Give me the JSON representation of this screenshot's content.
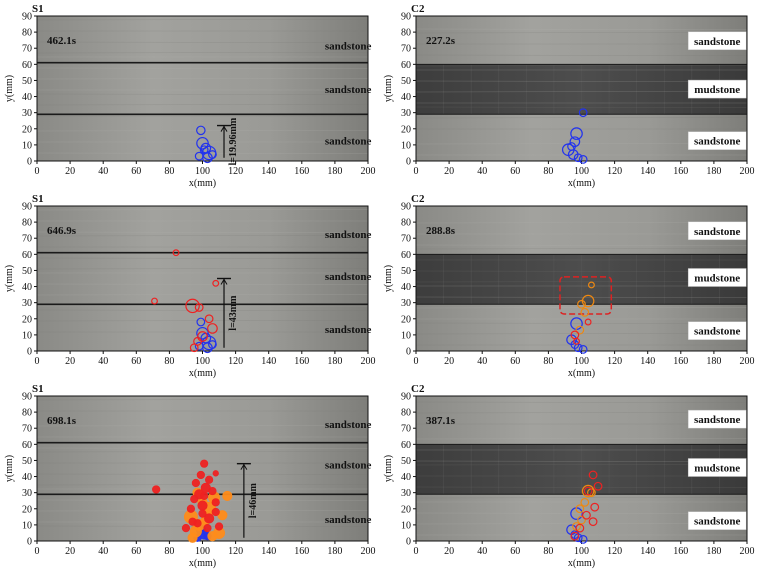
{
  "chart_data": [
    {
      "type": "scatter",
      "panel": "S1",
      "time": "462.1s",
      "xlabel": "x(mm)",
      "ylabel": "y(mm)",
      "xlim": [
        0,
        200
      ],
      "ylim": [
        0,
        90
      ],
      "xticks": [
        0,
        20,
        40,
        60,
        80,
        100,
        120,
        140,
        160,
        180,
        200
      ],
      "yticks": [
        0,
        10,
        20,
        30,
        40,
        50,
        60,
        70,
        80,
        90
      ],
      "interfaces": [
        61,
        29
      ],
      "layers": [
        {
          "label": "sandstone",
          "x": 188,
          "y": 71,
          "boxed": false
        },
        {
          "label": "sandstone",
          "x": 188,
          "y": 44,
          "boxed": false
        },
        {
          "label": "sandstone",
          "x": 188,
          "y": 12,
          "boxed": false
        }
      ],
      "measure": {
        "label": "l=19.96mm",
        "x": 113,
        "y_from": 2,
        "y_to": 22
      },
      "series": [
        {
          "color": "#2233ee",
          "filled": false,
          "points": [
            [
              99,
              19,
              2.2
            ],
            [
              100,
              11,
              3
            ],
            [
              102,
              8,
              2.5
            ],
            [
              104,
              5,
              3.5
            ],
            [
              98,
              3,
              2
            ],
            [
              103,
              2,
              2.5
            ],
            [
              106,
              4,
              2
            ],
            [
              101,
              7,
              2
            ]
          ]
        }
      ]
    },
    {
      "type": "scatter",
      "panel": "C2",
      "time": "227.2s",
      "xlabel": "x(mm)",
      "ylabel": "y(mm)",
      "xlim": [
        0,
        200
      ],
      "ylim": [
        0,
        90
      ],
      "xticks": [
        0,
        20,
        40,
        60,
        80,
        100,
        120,
        140,
        160,
        180,
        200
      ],
      "yticks": [
        0,
        10,
        20,
        30,
        40,
        50,
        60,
        70,
        80,
        90
      ],
      "interfaces": [
        60,
        29
      ],
      "layers": [
        {
          "label": "sandstone",
          "x": 182,
          "y": 74,
          "boxed": true
        },
        {
          "label": "mudstone",
          "x": 182,
          "y": 44,
          "boxed": true
        },
        {
          "label": "sandstone",
          "x": 182,
          "y": 12,
          "boxed": true
        }
      ],
      "series": [
        {
          "color": "#2233ee",
          "filled": false,
          "points": [
            [
              101,
              30,
              2
            ],
            [
              97,
              17,
              3
            ],
            [
              96,
              12,
              2.5
            ],
            [
              92,
              7,
              3
            ],
            [
              95,
              4,
              2.5
            ],
            [
              98,
              2,
              2
            ],
            [
              101,
              1,
              2
            ],
            [
              94,
              9,
              2
            ]
          ]
        }
      ]
    },
    {
      "type": "scatter",
      "panel": "S1",
      "time": "646.9s",
      "xlabel": "x(mm)",
      "ylabel": "y(mm)",
      "xlim": [
        0,
        200
      ],
      "ylim": [
        0,
        90
      ],
      "xticks": [
        0,
        20,
        40,
        60,
        80,
        100,
        120,
        140,
        160,
        180,
        200
      ],
      "yticks": [
        0,
        10,
        20,
        30,
        40,
        50,
        60,
        70,
        80,
        90
      ],
      "interfaces": [
        61,
        29
      ],
      "layers": [
        {
          "label": "sandstone",
          "x": 188,
          "y": 72,
          "boxed": false
        },
        {
          "label": "sandstone",
          "x": 188,
          "y": 46,
          "boxed": false
        },
        {
          "label": "sandstone",
          "x": 188,
          "y": 13,
          "boxed": false
        }
      ],
      "measure": {
        "label": "l=43mm",
        "x": 113,
        "y_from": 2,
        "y_to": 45
      },
      "series": [
        {
          "color": "#2233ee",
          "filled": false,
          "points": [
            [
              99,
              18,
              2
            ],
            [
              100,
              11,
              3
            ],
            [
              102,
              8,
              2.5
            ],
            [
              104,
              5,
              3.5
            ],
            [
              98,
              3,
              2
            ],
            [
              103,
              2,
              2.5
            ],
            [
              106,
              4,
              2
            ]
          ]
        },
        {
          "color": "#ee2222",
          "filled": false,
          "points": [
            [
              84,
              61,
              1.5
            ],
            [
              108,
              42,
              1.5
            ],
            [
              71,
              31,
              1.5
            ],
            [
              94,
              28,
              3.5
            ],
            [
              98,
              27,
              2
            ],
            [
              104,
              20,
              2
            ],
            [
              106,
              14,
              2.5
            ],
            [
              100,
              9,
              2.5
            ],
            [
              97,
              6,
              2
            ],
            [
              95,
              2,
              2
            ]
          ]
        }
      ]
    },
    {
      "type": "scatter",
      "panel": "C2",
      "time": "288.8s",
      "xlabel": "x(mm)",
      "ylabel": "y(mm)",
      "xlim": [
        0,
        200
      ],
      "ylim": [
        0,
        90
      ],
      "xticks": [
        0,
        20,
        40,
        60,
        80,
        100,
        120,
        140,
        160,
        180,
        200
      ],
      "yticks": [
        0,
        10,
        20,
        30,
        40,
        50,
        60,
        70,
        80,
        90
      ],
      "interfaces": [
        60,
        29
      ],
      "layers": [
        {
          "label": "sandstone",
          "x": 182,
          "y": 74,
          "boxed": true
        },
        {
          "label": "mudstone",
          "x": 182,
          "y": 45,
          "boxed": true
        },
        {
          "label": "sandstone",
          "x": 182,
          "y": 12,
          "boxed": true
        }
      ],
      "highlight": {
        "x1": 87,
        "y1": 23,
        "x2": 118,
        "y2": 46,
        "color": "#dd2222"
      },
      "series": [
        {
          "color": "#2233ee",
          "filled": false,
          "points": [
            [
              97,
              17,
              3
            ],
            [
              94,
              7,
              2.5
            ],
            [
              96,
              4,
              2
            ],
            [
              98,
              2,
              2
            ],
            [
              101,
              1,
              2
            ]
          ]
        },
        {
          "color": "#ee8811",
          "filled": false,
          "points": [
            [
              104,
              31,
              3
            ],
            [
              106,
              41,
              1.5
            ],
            [
              100,
              29,
              2
            ],
            [
              102,
              24,
              2
            ],
            [
              99,
              13,
              2
            ]
          ]
        },
        {
          "color": "#ee2222",
          "filled": false,
          "points": [
            [
              104,
              18,
              1.5
            ],
            [
              96,
              10,
              2
            ],
            [
              97,
              6,
              1.5
            ]
          ]
        }
      ]
    },
    {
      "type": "scatter",
      "panel": "S1",
      "time": "698.1s",
      "xlabel": "x(mm)",
      "ylabel": "y(mm)",
      "xlim": [
        0,
        200
      ],
      "ylim": [
        0,
        90
      ],
      "xticks": [
        0,
        20,
        40,
        60,
        80,
        100,
        120,
        140,
        160,
        180,
        200
      ],
      "yticks": [
        0,
        10,
        20,
        30,
        40,
        50,
        60,
        70,
        80,
        90
      ],
      "interfaces": [
        61,
        29
      ],
      "layers": [
        {
          "label": "sandstone",
          "x": 188,
          "y": 72,
          "boxed": false
        },
        {
          "label": "sandstone",
          "x": 188,
          "y": 47,
          "boxed": false
        },
        {
          "label": "sandstone",
          "x": 188,
          "y": 13,
          "boxed": false
        }
      ],
      "measure": {
        "label": "l=46mm",
        "x": 125,
        "y_from": 2,
        "y_to": 48
      },
      "series": [
        {
          "color": "#2233ee",
          "filled": true,
          "points": [
            [
              99,
              7,
              2.5
            ],
            [
              101,
              4,
              2.5
            ],
            [
              97,
              2,
              2
            ],
            [
              103,
              3,
              2
            ]
          ]
        },
        {
          "color": "#ff8c1a",
          "filled": true,
          "points": [
            [
              93,
              15,
              3.5
            ],
            [
              98,
              10,
              3
            ],
            [
              104,
              20,
              3.5
            ],
            [
              107,
              27,
              3
            ],
            [
              100,
              24,
              2.5
            ],
            [
              96,
              6,
              3
            ],
            [
              110,
              5,
              3
            ],
            [
              102,
              13,
              2.5
            ],
            [
              115,
              28,
              2.5
            ],
            [
              94,
              2,
              2.5
            ],
            [
              106,
              3,
              2.5
            ],
            [
              97,
              30,
              2.5
            ],
            [
              112,
              16,
              2.5
            ]
          ]
        },
        {
          "color": "#ee2222",
          "filled": true,
          "points": [
            [
              72,
              32,
              2
            ],
            [
              101,
              48,
              2
            ],
            [
              108,
              42,
              1.5
            ],
            [
              99,
              41,
              2
            ],
            [
              104,
              38,
              2
            ],
            [
              96,
              36,
              2
            ],
            [
              102,
              33,
              2.5
            ],
            [
              106,
              31,
              2
            ],
            [
              98,
              29,
              2.5
            ],
            [
              95,
              26,
              2
            ],
            [
              100,
              22,
              2.5
            ],
            [
              108,
              18,
              2
            ],
            [
              93,
              20,
              2
            ],
            [
              104,
              14,
              2.5
            ],
            [
              97,
              11,
              2
            ],
            [
              110,
              9,
              2
            ],
            [
              100,
              17,
              2
            ],
            [
              94,
              12,
              2
            ],
            [
              103,
              8,
              2
            ],
            [
              90,
              8,
              2
            ],
            [
              108,
              24,
              2
            ],
            [
              101,
              28,
              2
            ]
          ]
        }
      ]
    },
    {
      "type": "scatter",
      "panel": "C2",
      "time": "387.1s",
      "xlabel": "x(mm)",
      "ylabel": "y(mm)",
      "xlim": [
        0,
        200
      ],
      "ylim": [
        0,
        90
      ],
      "xticks": [
        0,
        20,
        40,
        60,
        80,
        100,
        120,
        140,
        160,
        180,
        200
      ],
      "yticks": [
        0,
        10,
        20,
        30,
        40,
        50,
        60,
        70,
        80,
        90
      ],
      "interfaces": [
        60,
        29
      ],
      "layers": [
        {
          "label": "sandstone",
          "x": 182,
          "y": 75,
          "boxed": true
        },
        {
          "label": "mudstone",
          "x": 182,
          "y": 45,
          "boxed": true
        },
        {
          "label": "sandstone",
          "x": 182,
          "y": 12,
          "boxed": true
        }
      ],
      "series": [
        {
          "color": "#2233ee",
          "filled": false,
          "points": [
            [
              97,
              17,
              3
            ],
            [
              94,
              7,
              2.5
            ],
            [
              96,
              4,
              2
            ],
            [
              98,
              2,
              2
            ],
            [
              101,
              1,
              2
            ]
          ]
        },
        {
          "color": "#ee8811",
          "filled": false,
          "points": [
            [
              104,
              31,
              3
            ],
            [
              102,
              24,
              2
            ],
            [
              99,
              20,
              2
            ],
            [
              106,
              30,
              2
            ],
            [
              100,
              13,
              2
            ],
            [
              97,
              9,
              2
            ]
          ]
        },
        {
          "color": "#ee2222",
          "filled": false,
          "points": [
            [
              107,
              41,
              2
            ],
            [
              110,
              34,
              2
            ],
            [
              104,
              31,
              2
            ],
            [
              108,
              21,
              2
            ],
            [
              107,
              12,
              2
            ],
            [
              99,
              8,
              2
            ],
            [
              103,
              16,
              2
            ],
            [
              96,
              3,
              2
            ]
          ]
        }
      ]
    }
  ]
}
